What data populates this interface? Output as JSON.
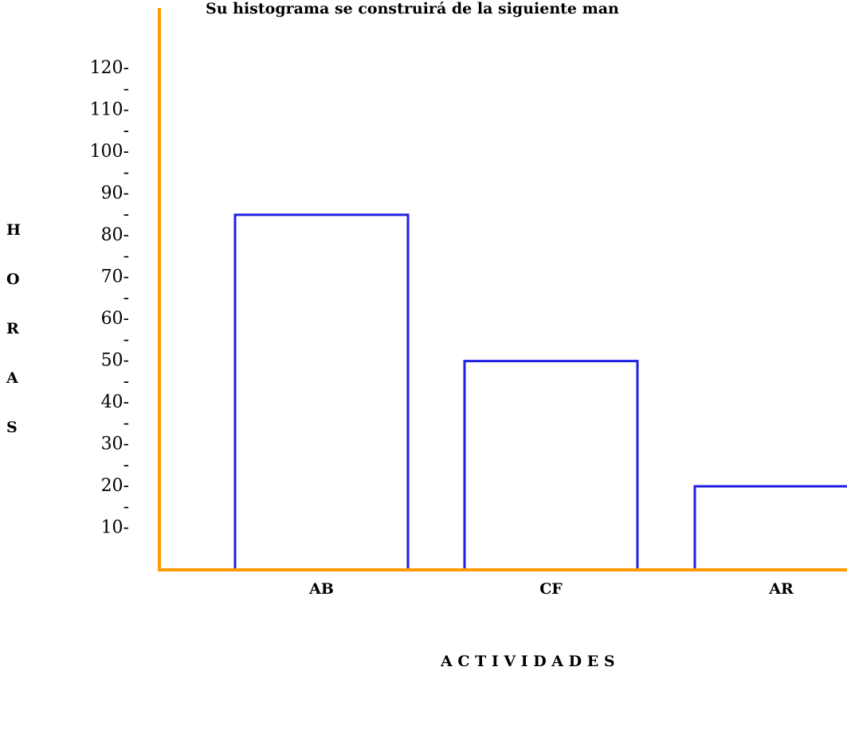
{
  "chart_data": {
    "type": "bar",
    "title": "Su histograma se construirá de la siguiente man",
    "ylabel_letters": [
      "H",
      "O",
      "R",
      "A",
      "S"
    ],
    "xlabel": "A C T I V I D A D E S",
    "categories": [
      "AB",
      "CF",
      "AR"
    ],
    "values": [
      85,
      50,
      20
    ],
    "color": "#1f1fe0",
    "axis_color": "#ff9a00",
    "ylim": [
      0,
      125
    ],
    "yticks": [
      {
        "value": 10,
        "label": "10-"
      },
      {
        "value": 15,
        "label": "-"
      },
      {
        "value": 20,
        "label": "20-"
      },
      {
        "value": 25,
        "label": "-"
      },
      {
        "value": 30,
        "label": "30-"
      },
      {
        "value": 35,
        "label": "-"
      },
      {
        "value": 40,
        "label": "40-"
      },
      {
        "value": 45,
        "label": "-"
      },
      {
        "value": 50,
        "label": "50-"
      },
      {
        "value": 55,
        "label": "-"
      },
      {
        "value": 60,
        "label": "60-"
      },
      {
        "value": 65,
        "label": "-"
      },
      {
        "value": 70,
        "label": "70-"
      },
      {
        "value": 75,
        "label": "-"
      },
      {
        "value": 80,
        "label": "80-"
      },
      {
        "value": 85,
        "label": "-"
      },
      {
        "value": 90,
        "label": "90-"
      },
      {
        "value": 95,
        "label": "-"
      },
      {
        "value": 100,
        "label": "100-"
      },
      {
        "value": 105,
        "label": "-"
      },
      {
        "value": 110,
        "label": "110-"
      },
      {
        "value": 115,
        "label": "-"
      },
      {
        "value": 120,
        "label": "120-"
      }
    ]
  }
}
